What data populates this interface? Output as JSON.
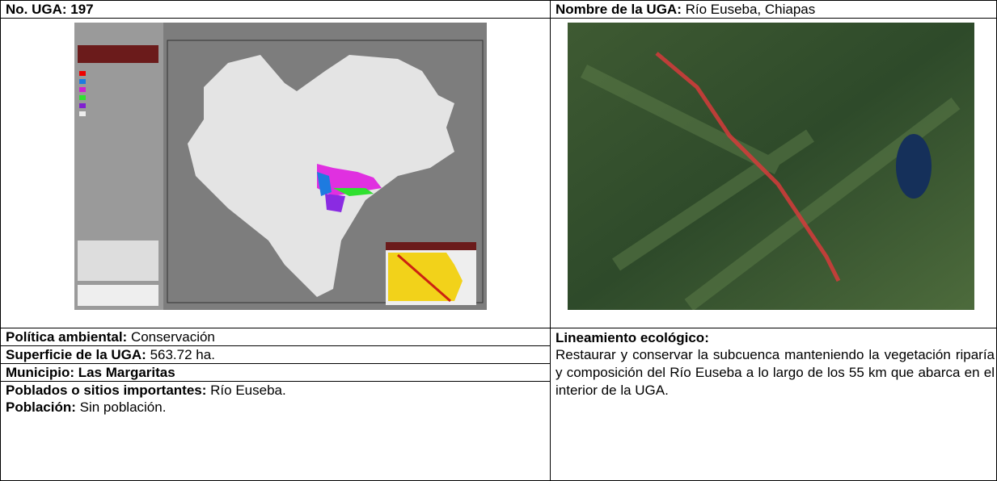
{
  "header": {
    "uga_label": "No. UGA: 197",
    "name_label": "Nombre de la UGA:",
    "name_value": "Río Euseba, Chiapas"
  },
  "fields": {
    "politica": {
      "label": "Política ambiental:",
      "value": "Conservación"
    },
    "superficie": {
      "label": "Superficie de la UGA:",
      "value": "563.72 ha."
    },
    "municipio": {
      "label": "Municipio: Las Margaritas"
    },
    "poblados": {
      "label": "Poblados o sitios importantes:",
      "value": "Río Euseba."
    },
    "poblacion": {
      "label": "Población:",
      "value": "Sin población."
    },
    "lineamiento": {
      "label": "Lineamiento ecológico:",
      "value": "Restaurar y conservar la subcuenca manteniendo la vegetación ripar­ía y composición del Río Euseba a lo largo de los 55 km que abarca en el interior de la UGA."
    }
  }
}
